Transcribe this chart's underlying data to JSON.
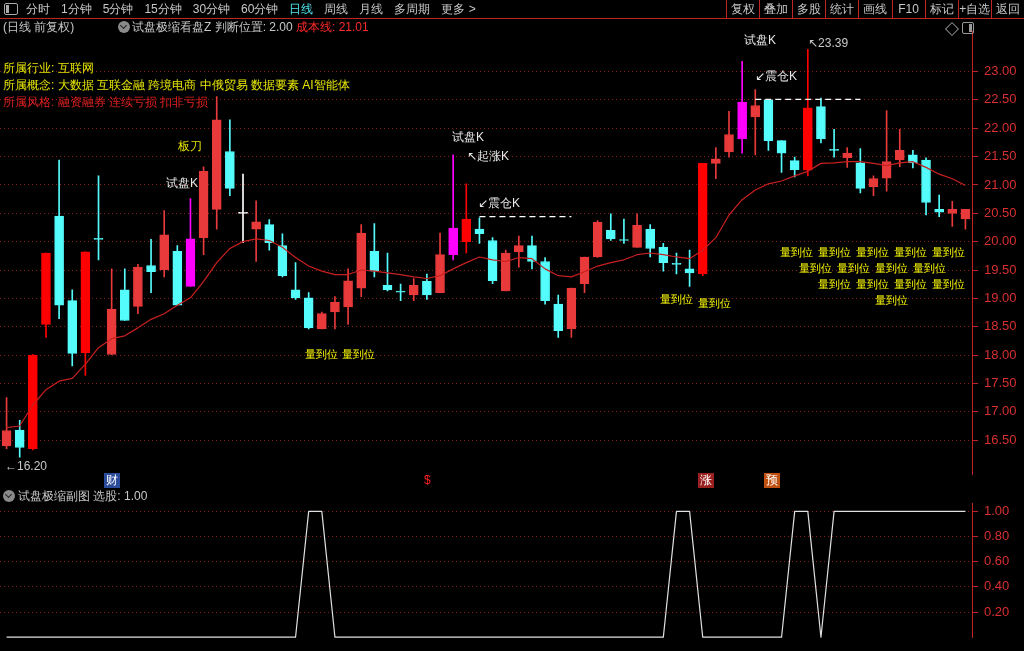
{
  "chart_data": [
    {
      "type": "other",
      "annotations": [
        "分时",
        "1分钟",
        "5分钟",
        "15分钟",
        "30分钟",
        "60分钟",
        "日线",
        "周线",
        "月线",
        "多周期",
        "更多 >"
      ]
    },
    {
      "type": "other",
      "annotations": [
        "复权",
        "叠加",
        "多股",
        "统计",
        "画线",
        "F10",
        "标记",
        "+自选",
        "返回"
      ]
    },
    {
      "type": "candlestick",
      "categories": [
        null,
        null,
        null,
        null,
        null,
        null,
        null,
        null,
        null,
        null,
        null,
        null,
        null,
        null,
        null,
        null,
        null,
        null,
        null,
        null,
        null,
        null,
        null,
        null,
        null,
        null,
        null,
        null,
        null,
        null,
        null,
        null,
        null,
        null,
        null,
        null,
        null,
        null,
        null,
        null,
        null,
        null,
        null,
        null,
        null,
        null,
        null,
        null,
        null,
        null,
        null,
        null,
        null,
        null,
        null,
        null,
        null,
        null,
        null,
        null,
        null,
        null,
        null,
        null,
        null,
        null,
        null,
        null,
        null,
        null,
        null,
        null,
        null,
        null
      ],
      "ohlc": [
        [
          16.4,
          17.25,
          16.35,
          16.67
        ],
        [
          16.68,
          16.85,
          16.2,
          16.37
        ],
        [
          16.35,
          18.01,
          16.33,
          18.0
        ],
        [
          18.54,
          19.8,
          18.31,
          19.8
        ],
        [
          20.45,
          21.44,
          18.64,
          18.88
        ],
        [
          18.96,
          19.15,
          17.81,
          18.03
        ],
        [
          18.04,
          19.82,
          17.64,
          19.82
        ],
        [
          20.04,
          21.16,
          19.68,
          20.04
        ],
        [
          18.01,
          19.52,
          18.01,
          18.81
        ],
        [
          19.15,
          19.52,
          18.61,
          18.61
        ],
        [
          18.86,
          19.6,
          18.73,
          19.55
        ],
        [
          19.58,
          20.04,
          19.1,
          19.47
        ],
        [
          19.5,
          20.55,
          19.38,
          20.12
        ],
        [
          19.83,
          19.93,
          18.88,
          18.88
        ],
        [
          19.21,
          20.76,
          19.21,
          20.05
        ],
        [
          20.07,
          21.32,
          19.77,
          21.24
        ],
        [
          20.57,
          22.56,
          20.22,
          22.15
        ],
        [
          21.59,
          22.15,
          20.81,
          20.94
        ],
        [
          20.5,
          21.19,
          19.98,
          20.5
        ],
        [
          20.22,
          20.72,
          19.65,
          20.35
        ],
        [
          20.3,
          20.39,
          19.85,
          19.98
        ],
        [
          19.93,
          20.14,
          19.38,
          19.4
        ],
        [
          19.15,
          19.63,
          18.98,
          19.01
        ],
        [
          19.01,
          19.1,
          18.46,
          18.48
        ],
        [
          18.46,
          18.76,
          18.46,
          18.73
        ],
        [
          18.76,
          19.03,
          18.46,
          18.93
        ],
        [
          18.85,
          19.52,
          18.54,
          19.31
        ],
        [
          19.18,
          20.3,
          19.03,
          20.15
        ],
        [
          19.83,
          20.32,
          19.38,
          19.48
        ],
        [
          19.23,
          19.8,
          19.13,
          19.15
        ],
        [
          19.11,
          19.25,
          18.96,
          19.11
        ],
        [
          19.06,
          19.35,
          18.96,
          19.23
        ],
        [
          19.3,
          19.43,
          18.98,
          19.06
        ],
        [
          19.1,
          20.15,
          19.1,
          19.77
        ],
        [
          19.77,
          21.53,
          19.68,
          20.24
        ],
        [
          20.0,
          21.02,
          19.8,
          20.4
        ],
        [
          20.22,
          20.42,
          19.97,
          20.14
        ],
        [
          20.02,
          20.07,
          19.26,
          19.31
        ],
        [
          19.13,
          19.85,
          19.13,
          19.8
        ],
        [
          19.82,
          20.1,
          19.55,
          19.93
        ],
        [
          19.93,
          20.1,
          19.52,
          19.65
        ],
        [
          19.65,
          19.72,
          18.9,
          18.96
        ],
        [
          18.9,
          19.06,
          18.31,
          18.43
        ],
        [
          18.46,
          19.18,
          18.31,
          19.18
        ],
        [
          19.26,
          19.73,
          19.1,
          19.73
        ],
        [
          19.73,
          20.37,
          19.72,
          20.34
        ],
        [
          20.2,
          20.49,
          20.02,
          20.05
        ],
        [
          20.02,
          20.4,
          19.97,
          20.02
        ],
        [
          19.9,
          20.49,
          19.9,
          20.29
        ],
        [
          20.22,
          20.3,
          19.73,
          19.88
        ],
        [
          19.9,
          19.97,
          19.48,
          19.63
        ],
        [
          19.6,
          19.8,
          19.43,
          19.6
        ],
        [
          19.52,
          19.85,
          19.21,
          19.45
        ],
        [
          19.43,
          21.38,
          19.4,
          21.38
        ],
        [
          21.38,
          21.66,
          21.11,
          21.46
        ],
        [
          21.58,
          22.3,
          21.49,
          21.89
        ],
        [
          21.81,
          23.18,
          21.56,
          22.46
        ],
        [
          22.2,
          22.68,
          21.53,
          22.4
        ],
        [
          22.5,
          22.5,
          21.61,
          21.78
        ],
        [
          21.78,
          21.78,
          21.22,
          21.56
        ],
        [
          21.43,
          21.49,
          21.14,
          21.27
        ],
        [
          21.26,
          23.39,
          21.16,
          22.36
        ],
        [
          22.38,
          22.53,
          21.74,
          21.81
        ],
        [
          21.61,
          21.98,
          21.49,
          21.61
        ],
        [
          21.48,
          21.66,
          21.31,
          21.56
        ],
        [
          21.39,
          21.64,
          20.86,
          20.94
        ],
        [
          20.97,
          21.16,
          20.81,
          21.11
        ],
        [
          21.12,
          22.31,
          20.89,
          21.41
        ],
        [
          21.44,
          21.98,
          21.32,
          21.61
        ],
        [
          21.53,
          21.61,
          21.3,
          21.39
        ],
        [
          21.44,
          21.48,
          20.47,
          20.69
        ],
        [
          20.57,
          20.82,
          20.44,
          20.52
        ],
        [
          20.5,
          20.71,
          20.27,
          20.57
        ],
        [
          20.4,
          20.57,
          20.22,
          20.57
        ]
      ],
      "colors": [
        "#e83a3a",
        "#54fcfc",
        "#ff0000",
        "#ff0000",
        "#54fcfc",
        "#54fcfc",
        "#ff0000",
        "#54fcfc",
        "#e83a3a",
        "#54fcfc",
        "#e83a3a",
        "#54fcfc",
        "#e83a3a",
        "#54fcfc",
        "#ff00ff",
        "#e83a3a",
        "#e83a3a",
        "#54fcfc",
        "#ffffff",
        "#e83a3a",
        "#54fcfc",
        "#54fcfc",
        "#54fcfc",
        "#54fcfc",
        "#e83a3a",
        "#e83a3a",
        "#e83a3a",
        "#e83a3a",
        "#54fcfc",
        "#54fcfc",
        "#54fcfc",
        "#e83a3a",
        "#54fcfc",
        "#e83a3a",
        "#ff00ff",
        "#ff0000",
        "#54fcfc",
        "#54fcfc",
        "#e83a3a",
        "#e83a3a",
        "#54fcfc",
        "#54fcfc",
        "#54fcfc",
        "#e83a3a",
        "#e83a3a",
        "#e83a3a",
        "#54fcfc",
        "#54fcfc",
        "#e83a3a",
        "#54fcfc",
        "#54fcfc",
        "#54fcfc",
        "#54fcfc",
        "#ff0000",
        "#e83a3a",
        "#e83a3a",
        "#ff00ff",
        "#e83a3a",
        "#54fcfc",
        "#54fcfc",
        "#54fcfc",
        "#ff0000",
        "#54fcfc",
        "#54fcfc",
        "#e83a3a",
        "#54fcfc",
        "#e83a3a",
        "#e83a3a",
        "#e83a3a",
        "#54fcfc",
        "#54fcfc",
        "#54fcfc",
        "#e83a3a",
        "#e83a3a"
      ],
      "series": [
        {
          "type": "line",
          "color": "#c82020",
          "values": [
            16.72,
            16.75,
            17.12,
            17.39,
            17.54,
            17.59,
            17.84,
            18.13,
            18.29,
            18.34,
            18.48,
            18.63,
            18.73,
            18.88,
            19.01,
            19.3,
            19.63,
            19.88,
            20.0,
            20.05,
            20.02,
            19.9,
            19.72,
            19.57,
            19.48,
            19.42,
            19.42,
            19.5,
            19.48,
            19.45,
            19.42,
            19.38,
            19.35,
            19.4,
            19.52,
            19.63,
            19.73,
            19.68,
            19.65,
            19.72,
            19.7,
            19.52,
            19.4,
            19.38,
            19.47,
            19.57,
            19.63,
            19.68,
            19.77,
            19.8,
            19.77,
            19.73,
            19.7,
            19.85,
            20.07,
            20.47,
            20.74,
            20.91,
            21.02,
            21.07,
            21.16,
            21.24,
            21.38,
            21.39,
            21.41,
            21.41,
            21.38,
            21.34,
            21.39,
            21.41,
            21.31,
            21.19,
            21.11,
            20.99
          ]
        },
        {
          "type": "line",
          "color": "#ffffff",
          "line_style": "dashed",
          "values": [
            null,
            null,
            null,
            null,
            null,
            null,
            null,
            null,
            null,
            null,
            null,
            null,
            null,
            null,
            null,
            null,
            null,
            null,
            null,
            null,
            null,
            null,
            null,
            null,
            null,
            null,
            null,
            null,
            null,
            null,
            null,
            null,
            null,
            null,
            null,
            null,
            20.44,
            20.44,
            20.44,
            20.44,
            20.44,
            20.44,
            20.44,
            20.44,
            null,
            null,
            null,
            null,
            null,
            null,
            null,
            null,
            null,
            null,
            null,
            null,
            null,
            null,
            null,
            null,
            null,
            null,
            null,
            null,
            null,
            null,
            null,
            null,
            null,
            null,
            null,
            null,
            null,
            null
          ]
        },
        {
          "type": "line",
          "color": "#ffffff",
          "line_style": "dashed",
          "values": [
            null,
            null,
            null,
            null,
            null,
            null,
            null,
            null,
            null,
            null,
            null,
            null,
            null,
            null,
            null,
            null,
            null,
            null,
            null,
            null,
            null,
            null,
            null,
            null,
            null,
            null,
            null,
            null,
            null,
            null,
            null,
            null,
            null,
            null,
            null,
            null,
            null,
            null,
            null,
            null,
            null,
            null,
            null,
            null,
            null,
            null,
            null,
            null,
            null,
            null,
            null,
            null,
            null,
            null,
            null,
            null,
            null,
            22.51,
            22.51,
            22.51,
            22.51,
            22.51,
            22.51,
            22.51,
            22.51,
            22.51,
            null,
            null,
            null,
            null,
            null,
            null,
            null,
            null
          ]
        }
      ],
      "ylim": [
        15.9,
        23.7
      ],
      "yticks": [
        {
          "value": 16.5,
          "label": "16.50"
        },
        {
          "value": 17,
          "label": "17.00"
        },
        {
          "value": 17.5,
          "label": "17.50"
        },
        {
          "value": 18,
          "label": "18.00"
        },
        {
          "value": 18.5,
          "label": "18.50"
        },
        {
          "value": 19,
          "label": "19.00"
        },
        {
          "value": 19.5,
          "label": "19.50"
        },
        {
          "value": 20,
          "label": "20.00"
        },
        {
          "value": 20.5,
          "label": "20.50"
        },
        {
          "value": 21,
          "label": "21.00"
        },
        {
          "value": 21.5,
          "label": "21.50"
        },
        {
          "value": 22,
          "label": "22.00"
        },
        {
          "value": 22.5,
          "label": "22.50"
        },
        {
          "value": 23,
          "label": "23.00"
        }
      ],
      "grid": "y",
      "annotations": [
        "(日线 前复权)",
        "试盘极缩看盘Z 判断位置: 2.00",
        "成本线: 21.01",
        "所属行业: 互联网",
        "所属概念: 大数据 互联金融 跨境电商 中俄贸易 数据要素 AI智能体",
        "所属风格: 融资融券 连续亏损 扣非亏损",
        "板刀",
        "试盘K",
        "试盘K",
        "↖起涨K",
        "↙震仓K",
        "试盘K",
        "↙震仓K",
        "↖23.39",
        "←16.20",
        "财",
        "$",
        "涨",
        "预",
        "量到位",
        "量到位",
        "量到位",
        "量到位",
        "量到位",
        "量到位",
        "量到位",
        "量到位",
        "量到位",
        "量到位",
        "量到位",
        "量到位",
        "量到位",
        "量到位",
        "量到位",
        "量到位",
        "量到位",
        "量到位"
      ]
    },
    {
      "type": "line",
      "title": "试盘极缩副图 选股: 1.00",
      "categories": [
        null,
        null,
        null,
        null,
        null,
        null,
        null,
        null,
        null,
        null,
        null,
        null,
        null,
        null,
        null,
        null,
        null,
        null,
        null,
        null,
        null,
        null,
        null,
        null,
        null,
        null,
        null,
        null,
        null,
        null,
        null,
        null,
        null,
        null,
        null,
        null,
        null,
        null,
        null,
        null,
        null,
        null,
        null,
        null,
        null,
        null,
        null,
        null,
        null,
        null,
        null,
        null,
        null,
        null,
        null,
        null,
        null,
        null,
        null,
        null,
        null,
        null,
        null,
        null,
        null,
        null,
        null,
        null,
        null,
        null,
        null,
        null,
        null,
        null
      ],
      "series": [
        {
          "color": "#e0e0e0",
          "values": [
            0,
            0,
            0,
            0,
            0,
            0,
            0,
            0,
            0,
            0,
            0,
            0,
            0,
            0,
            0,
            0,
            0,
            0,
            0,
            0,
            0,
            0,
            0,
            1,
            1,
            0,
            0,
            0,
            0,
            0,
            0,
            0,
            0,
            0,
            0,
            0,
            0,
            0,
            0,
            0,
            0,
            0,
            0,
            0,
            0,
            0,
            0,
            0,
            0,
            0,
            0,
            1,
            1,
            0,
            0,
            0,
            0,
            0,
            0,
            0,
            1,
            1,
            0,
            1,
            1,
            1,
            1,
            1,
            1,
            1,
            1,
            1,
            1,
            1
          ]
        }
      ],
      "ylim": [
        0,
        1.06
      ],
      "yticks": [
        {
          "value": 0.2,
          "label": "0.20"
        },
        {
          "value": 0.4,
          "label": "0.40"
        },
        {
          "value": 0.6,
          "label": "0.60"
        },
        {
          "value": 0.8,
          "label": "0.80"
        },
        {
          "value": 1,
          "label": "1.00"
        }
      ],
      "grid": "y"
    }
  ]
}
